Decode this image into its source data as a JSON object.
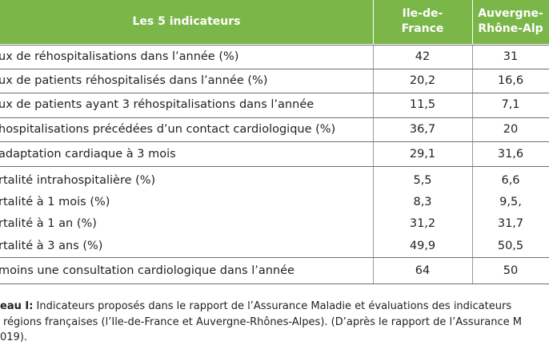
{
  "table": {
    "header": [
      "Les 5 indicateurs",
      "Ile-de-\nFrance",
      "Auvergne-\nRhône-Alp"
    ],
    "rows": [
      [
        "ux de réhospitalisations dans l’année (%)",
        "42",
        "31"
      ],
      [
        "ux de patients réhospitalisés dans l’année (%)",
        "20,2",
        "16,6"
      ],
      [
        "ux de patients ayant 3 réhospitalisations dans l’année",
        "11,5",
        "7,1"
      ],
      [
        "hospitalisations précédées d’un contact cardiologique (%)",
        "36,7",
        "20"
      ],
      [
        "adaptation cardiaque à 3 mois",
        "29,1",
        "31,6"
      ],
      [
        "rtalité intrahospitalière (%)",
        "5,5",
        "6,6"
      ],
      [
        "rtalité à 1 mois (%)",
        "8,3",
        "9,5,"
      ],
      [
        "rtalité à 1 an (%)",
        "31,2",
        "31,7"
      ],
      [
        "rtalité à 3 ans (%)",
        "49,9",
        "50,5"
      ],
      [
        "moins une consultation cardiologique dans l’année",
        "64",
        "50"
      ]
    ]
  },
  "caption": {
    "label": "eau I:",
    "lines": [
      " Indicateurs proposés dans le rapport de l’Assurance Maladie et évaluations des indicateurs",
      "régions françaises (l’Ile-de-France et Auvergne-Rhônes-Alpes). (D’après le rapport de l’Assurance M",
      "019)."
    ]
  }
}
